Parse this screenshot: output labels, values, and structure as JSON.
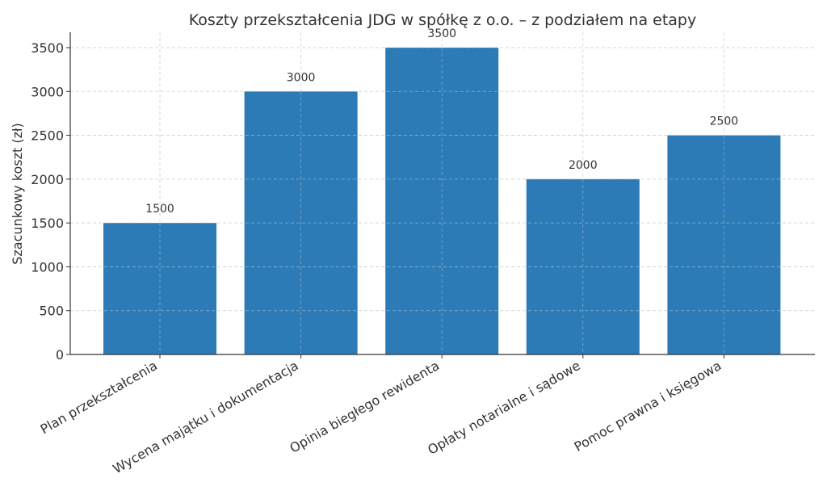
{
  "chart_data": {
    "type": "bar",
    "title": "Koszty przekształcenia JDG w spółkę z o.o. – z podziałem na etapy",
    "xlabel": "",
    "ylabel": "Szacunkowy koszt (zł)",
    "categories": [
      "Plan przekształcenia",
      "Wycena majątku i dokumentacja",
      "Opinia biegłego rewidenta",
      "Opłaty notarialne i sądowe",
      "Pomoc prawna i księgowa"
    ],
    "values": [
      1500,
      3000,
      3500,
      2000,
      2500
    ],
    "data_labels": [
      "1500",
      "3000",
      "3500",
      "2000",
      "2500"
    ],
    "ylim": [
      0,
      3675
    ],
    "yticks": [
      0,
      500,
      1000,
      1500,
      2000,
      2500,
      3000,
      3500
    ],
    "grid": true,
    "grid_style": "dashed",
    "legend": null,
    "bar_color": "#2c7bb6",
    "xtick_rotation": -30
  }
}
